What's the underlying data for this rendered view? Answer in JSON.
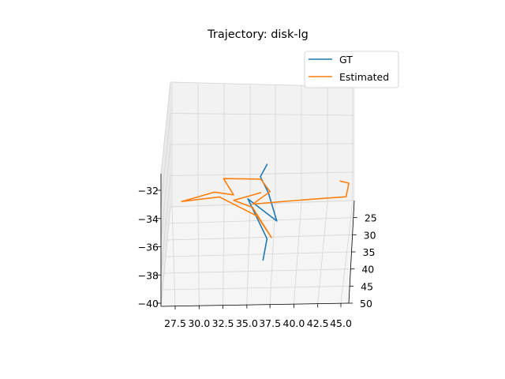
{
  "chart_data": {
    "type": "line",
    "title": "Trajectory: disk-lg",
    "xlabel": "",
    "ylabel": "",
    "zlabel": "",
    "projection": "3d",
    "grid": true,
    "legend_position": "top-right",
    "x_ticks": [
      "27.5",
      "30.0",
      "32.5",
      "35.0",
      "37.5",
      "40.0",
      "42.5",
      "45.0"
    ],
    "y_ticks": [
      "25",
      "30",
      "35",
      "40",
      "45",
      "50"
    ],
    "z_ticks": [
      "−32",
      "−34",
      "−36",
      "−38",
      "−40"
    ],
    "series": [
      {
        "name": "GT",
        "color": "#1f77b4",
        "points": [
          [
            37.3,
            25.5,
            -30.8
          ],
          [
            36.5,
            28.0,
            -31.5
          ],
          [
            37.3,
            32.0,
            -32.3
          ],
          [
            38.1,
            38.0,
            -33.8
          ],
          [
            35.0,
            36.0,
            -32.4
          ],
          [
            37.0,
            41.0,
            -34.8
          ],
          [
            36.5,
            44.0,
            -36.1
          ]
        ]
      },
      {
        "name": "Estimated",
        "color": "#ff7f0e",
        "points": [
          [
            45.0,
            28.0,
            -31.8
          ],
          [
            46.0,
            27.5,
            -32.0
          ],
          [
            45.8,
            28.5,
            -32.5
          ],
          [
            45.6,
            33.0,
            -32.5
          ],
          [
            42.0,
            35.0,
            -32.5
          ],
          [
            38.5,
            36.0,
            -32.6
          ],
          [
            35.5,
            38.0,
            -32.6
          ],
          [
            37.5,
            31.0,
            -32.3
          ],
          [
            36.5,
            30.0,
            -31.5
          ],
          [
            32.5,
            32.0,
            -31.3
          ],
          [
            33.5,
            35.0,
            -32.2
          ],
          [
            31.5,
            35.0,
            -32.0
          ],
          [
            28.0,
            37.0,
            -32.5
          ],
          [
            32.0,
            35.5,
            -32.3
          ],
          [
            36.0,
            37.5,
            -33.5
          ],
          [
            37.5,
            40.0,
            -34.8
          ],
          [
            35.5,
            36.0,
            -33.0
          ],
          [
            33.5,
            36.0,
            -32.5
          ],
          [
            35.5,
            34.0,
            -32.3
          ],
          [
            36.5,
            33.0,
            -32.2
          ]
        ]
      }
    ]
  }
}
